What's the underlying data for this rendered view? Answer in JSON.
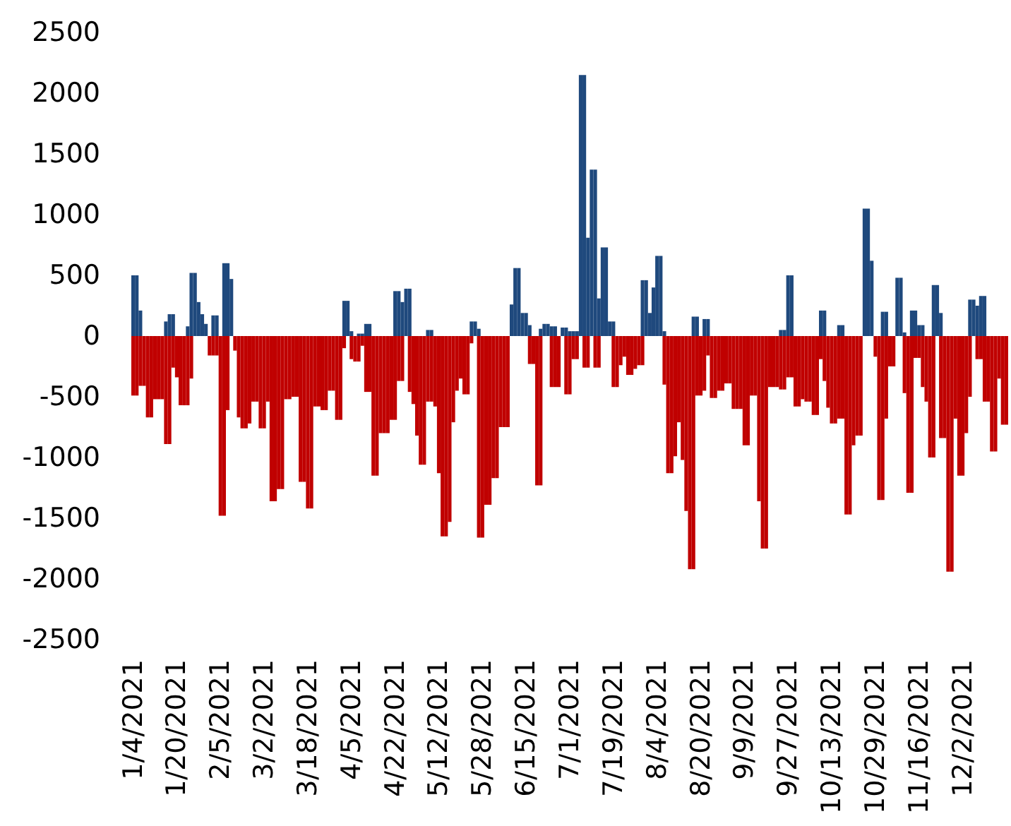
{
  "chart_data": {
    "type": "bar",
    "categories": [
      "1/4/2021",
      null,
      null,
      null,
      null,
      null,
      null,
      null,
      null,
      null,
      null,
      null,
      "1/20/2021",
      null,
      null,
      null,
      null,
      null,
      null,
      null,
      null,
      null,
      null,
      null,
      "2/5/2021",
      null,
      null,
      null,
      null,
      null,
      null,
      null,
      null,
      null,
      null,
      null,
      "3/2/2021",
      null,
      null,
      null,
      null,
      null,
      null,
      null,
      null,
      null,
      null,
      null,
      "3/18/2021",
      null,
      null,
      null,
      null,
      null,
      null,
      null,
      null,
      null,
      null,
      null,
      "4/5/2021",
      null,
      null,
      null,
      null,
      null,
      null,
      null,
      null,
      null,
      null,
      null,
      "4/22/2021",
      null,
      null,
      null,
      null,
      null,
      null,
      null,
      null,
      null,
      null,
      null,
      "5/12/2021",
      null,
      null,
      null,
      null,
      null,
      null,
      null,
      null,
      null,
      null,
      null,
      "5/28/2021",
      null,
      null,
      null,
      null,
      null,
      null,
      null,
      null,
      null,
      null,
      null,
      "6/15/2021",
      null,
      null,
      null,
      null,
      null,
      null,
      null,
      null,
      null,
      null,
      null,
      "7/1/2021",
      null,
      null,
      null,
      null,
      null,
      null,
      null,
      null,
      null,
      null,
      null,
      "7/19/2021",
      null,
      null,
      null,
      null,
      null,
      null,
      null,
      null,
      null,
      null,
      null,
      "8/4/2021",
      null,
      null,
      null,
      null,
      null,
      null,
      null,
      null,
      null,
      null,
      null,
      "8/20/2021",
      null,
      null,
      null,
      null,
      null,
      null,
      null,
      null,
      null,
      null,
      null,
      "9/9/2021",
      null,
      null,
      null,
      null,
      null,
      null,
      null,
      null,
      null,
      null,
      null,
      "9/27/2021",
      null,
      null,
      null,
      null,
      null,
      null,
      null,
      null,
      null,
      null,
      null,
      "10/13/2021",
      null,
      null,
      null,
      null,
      null,
      null,
      null,
      null,
      null,
      null,
      null,
      "10/29/2021",
      null,
      null,
      null,
      null,
      null,
      null,
      null,
      null,
      null,
      null,
      null,
      "11/16/2021",
      null,
      null,
      null,
      null,
      null,
      null,
      null,
      null,
      null,
      null,
      null,
      "12/2/2021",
      null,
      null,
      null,
      null,
      null,
      null,
      null,
      null,
      null,
      null,
      null,
      null
    ],
    "series": [
      {
        "color": "#1f497d",
        "values": [
          500,
          500,
          210,
          null,
          null,
          null,
          null,
          null,
          null,
          120,
          180,
          180,
          null,
          null,
          null,
          80,
          520,
          520,
          280,
          180,
          100,
          null,
          170,
          170,
          null,
          600,
          600,
          470,
          null,
          null,
          null,
          null,
          null,
          null,
          null,
          null,
          null,
          null,
          null,
          null,
          null,
          null,
          null,
          null,
          null,
          null,
          null,
          null,
          null,
          null,
          null,
          null,
          null,
          null,
          null,
          null,
          null,
          null,
          290,
          290,
          40,
          null,
          20,
          20,
          100,
          100,
          null,
          null,
          null,
          null,
          null,
          null,
          370,
          370,
          280,
          390,
          390,
          null,
          null,
          null,
          null,
          50,
          50,
          null,
          null,
          null,
          null,
          null,
          null,
          null,
          null,
          null,
          null,
          120,
          120,
          60,
          null,
          null,
          null,
          null,
          null,
          null,
          null,
          null,
          260,
          560,
          560,
          190,
          190,
          90,
          null,
          null,
          60,
          100,
          100,
          80,
          80,
          null,
          70,
          70,
          40,
          40,
          40,
          2150,
          2150,
          810,
          1370,
          1370,
          310,
          730,
          730,
          120,
          120,
          null,
          null,
          null,
          null,
          null,
          null,
          null,
          460,
          460,
          190,
          400,
          660,
          660,
          40,
          null,
          null,
          null,
          null,
          null,
          null,
          null,
          160,
          160,
          null,
          140,
          140,
          null,
          null,
          null,
          null,
          null,
          null,
          null,
          null,
          null,
          null,
          null,
          null,
          null,
          null,
          null,
          null,
          null,
          null,
          null,
          50,
          50,
          500,
          500,
          null,
          null,
          null,
          null,
          null,
          null,
          null,
          210,
          210,
          null,
          null,
          null,
          90,
          90,
          null,
          null,
          null,
          null,
          null,
          1050,
          1050,
          620,
          null,
          null,
          200,
          200,
          null,
          null,
          480,
          480,
          30,
          null,
          210,
          210,
          90,
          90,
          null,
          null,
          420,
          420,
          190,
          null,
          null,
          null,
          null,
          null,
          null,
          null,
          300,
          300,
          250,
          330,
          330,
          null,
          null,
          null,
          null,
          null,
          null
        ]
      },
      {
        "color": "#c00000",
        "values": [
          -490,
          -490,
          -410,
          -410,
          -670,
          -670,
          -520,
          -520,
          -520,
          -890,
          -890,
          -260,
          -340,
          -570,
          -570,
          -570,
          -350,
          null,
          null,
          null,
          null,
          -160,
          -160,
          -160,
          -1480,
          -1480,
          -610,
          null,
          -120,
          -670,
          -760,
          -760,
          -720,
          -540,
          -540,
          -760,
          -760,
          -540,
          -1360,
          -1360,
          -1260,
          -1260,
          -520,
          -520,
          -500,
          -500,
          -1200,
          -1200,
          -1420,
          -1420,
          -580,
          -580,
          -610,
          -610,
          -450,
          -450,
          -690,
          -690,
          -100,
          null,
          -190,
          -210,
          -210,
          -80,
          -460,
          -460,
          -1150,
          -1150,
          -800,
          -800,
          -800,
          -690,
          -690,
          -370,
          -370,
          null,
          -460,
          -560,
          -820,
          -1060,
          -1060,
          -540,
          -540,
          -580,
          -1130,
          -1650,
          -1650,
          -1530,
          -710,
          -450,
          -350,
          -480,
          -480,
          -60,
          null,
          -1660,
          -1660,
          -1390,
          -1390,
          -1170,
          -1170,
          -750,
          -750,
          -750,
          null,
          null,
          null,
          null,
          null,
          -230,
          -230,
          -1230,
          -1230,
          null,
          null,
          -420,
          -420,
          -420,
          null,
          -480,
          -480,
          -190,
          -190,
          null,
          -260,
          -260,
          null,
          -260,
          -260,
          null,
          null,
          null,
          -420,
          -420,
          -240,
          -170,
          -320,
          -320,
          -270,
          -240,
          -240,
          null,
          null,
          null,
          null,
          null,
          -400,
          -1130,
          -1130,
          -990,
          -710,
          -1020,
          -1440,
          -1920,
          -1920,
          -490,
          -490,
          -450,
          -160,
          -510,
          -510,
          -450,
          -450,
          -390,
          -390,
          -600,
          -600,
          -600,
          -900,
          -900,
          -490,
          -490,
          -1360,
          -1750,
          -1750,
          -420,
          -420,
          -420,
          -440,
          -440,
          -340,
          -340,
          -580,
          -580,
          -520,
          -540,
          -540,
          -650,
          -650,
          -190,
          -370,
          -590,
          -720,
          -720,
          -680,
          -680,
          -1470,
          -1470,
          -900,
          -820,
          -820,
          null,
          null,
          null,
          -170,
          -1350,
          -1350,
          -680,
          -250,
          -250,
          null,
          null,
          -470,
          -1290,
          -1290,
          -180,
          -180,
          -420,
          -540,
          -1000,
          -1000,
          null,
          -840,
          -840,
          -1940,
          -1940,
          -680,
          -1150,
          -1150,
          -800,
          -500,
          null,
          -190,
          -190,
          -540,
          -540,
          -950,
          -950,
          -350,
          -730,
          -730
        ]
      }
    ],
    "ylim": [
      -2500,
      2500
    ],
    "yticks": [
      -2500,
      -2000,
      -1500,
      -1000,
      -500,
      0,
      500,
      1000,
      1500,
      2000,
      2500
    ]
  }
}
